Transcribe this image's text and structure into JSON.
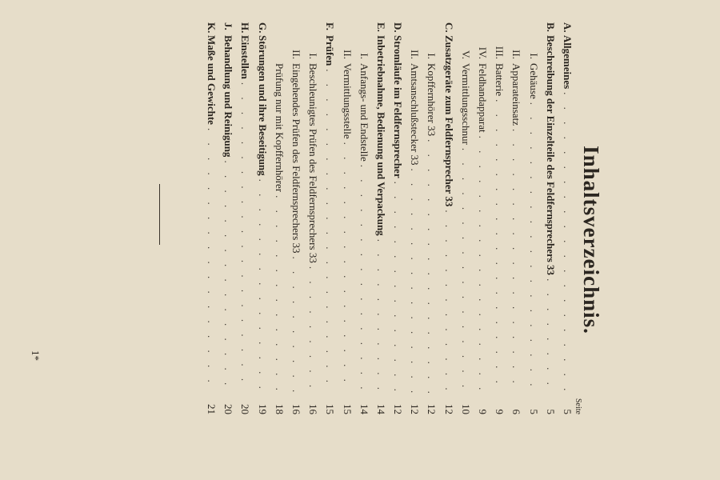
{
  "title": "Inhaltsverzeichnis.",
  "page_column_header": "Seite",
  "entries": [
    {
      "letter": "A.",
      "label": "Allgemeines",
      "page": "5",
      "main": true
    },
    {
      "letter": "B.",
      "label": "Beschreibung der Einzelteile des Feldfernsprechers 33",
      "page": "5",
      "main": true
    },
    {
      "roman": "I.",
      "label": "Gehäuse",
      "page": "5"
    },
    {
      "roman": "II.",
      "label": "Apparateinsatz",
      "page": "6"
    },
    {
      "roman": "III.",
      "label": "Batterie",
      "page": "9"
    },
    {
      "roman": "IV.",
      "label": "Feldhandapparat",
      "page": "9"
    },
    {
      "roman": "V.",
      "label": "Vermittlungsschnur",
      "page": "10"
    },
    {
      "letter": "C.",
      "label": "Zusatzgeräte zum Feldfernsprecher 33",
      "page": "12",
      "main": true
    },
    {
      "roman": "I.",
      "label": "Kopffernhörer 33",
      "page": "12"
    },
    {
      "roman": "II.",
      "label": "Amtsanschlußstecker 33",
      "page": "12"
    },
    {
      "letter": "D.",
      "label": "Stromläufe im Feldfernsprecher",
      "page": "12",
      "main": true
    },
    {
      "letter": "E.",
      "label": "Inbetriebnahme, Bedienung und Verpackung",
      "page": "14",
      "main": true
    },
    {
      "roman": "I.",
      "label": "Anfangs- und Endstelle",
      "page": "14"
    },
    {
      "roman": "II.",
      "label": "Vermittlungsstelle",
      "page": "15"
    },
    {
      "letter": "F.",
      "label": "Prüfen",
      "page": "15",
      "main": true
    },
    {
      "roman": "I.",
      "label": "Beschleunigtes Prüfen des Feldfernsprechers 33",
      "page": "16"
    },
    {
      "roman": "II.",
      "label": "Eingehendes Prüfen des Feldfernsprechers 33",
      "page": "16"
    },
    {
      "roman": "",
      "label": "Prüfung nur mit Kopffernhörer",
      "page": "18"
    },
    {
      "letter": "G.",
      "label": "Störungen und ihre Beseitigung",
      "page": "19",
      "main": true
    },
    {
      "letter": "H.",
      "label": "Einstellen",
      "page": "20",
      "main": true
    },
    {
      "letter": "J.",
      "label": "Behandlung und Reinigung",
      "page": "20",
      "main": true
    },
    {
      "letter": "K.",
      "label": "Maße und Gewichte",
      "page": "21",
      "main": true
    }
  ],
  "page_mark": "1*"
}
